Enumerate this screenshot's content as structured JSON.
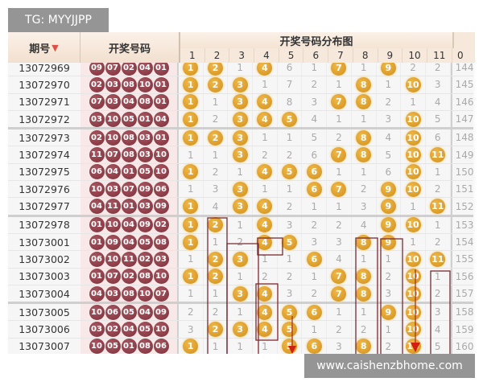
{
  "watermark_top": "TG: MYYJJPP",
  "watermark_bottom": "www.caishenzbhome.com",
  "header": {
    "period_label": "期号",
    "draw_label": "开奖号码",
    "distribution_label": "开奖号码分布图",
    "columns": [
      "1",
      "2",
      "3",
      "4",
      "5",
      "6",
      "7",
      "8",
      "9",
      "10",
      "11"
    ],
    "last_column": "0",
    "sort_icon": "down-arrow-icon"
  },
  "colors": {
    "draw_ball": "#8b3a44",
    "hit_ball": "#e0a030",
    "trend_box": "#7a2a30",
    "arrow": "#d02010"
  },
  "rows": [
    {
      "period": "13072969",
      "draws": [
        "09",
        "07",
        "02",
        "04",
        "01"
      ],
      "cells": [
        "1",
        "2",
        "1",
        "4",
        "6",
        "1",
        "7",
        "1",
        "9",
        "2",
        "2"
      ],
      "last": "144"
    },
    {
      "period": "13072970",
      "draws": [
        "02",
        "03",
        "08",
        "10",
        "01"
      ],
      "cells": [
        "1",
        "2",
        "3",
        "1",
        "7",
        "2",
        "1",
        "8",
        "1",
        "10",
        "3"
      ],
      "last": "145"
    },
    {
      "period": "13072971",
      "draws": [
        "07",
        "03",
        "04",
        "08",
        "01"
      ],
      "cells": [
        "1",
        "1",
        "3",
        "4",
        "8",
        "3",
        "7",
        "8",
        "2",
        "1",
        "4"
      ],
      "last": "146"
    },
    {
      "period": "13072972",
      "draws": [
        "03",
        "10",
        "05",
        "01",
        "04"
      ],
      "cells": [
        "1",
        "2",
        "3",
        "4",
        "5",
        "4",
        "1",
        "1",
        "3",
        "10",
        "5"
      ],
      "last": "147"
    },
    {
      "period": "13072973",
      "draws": [
        "02",
        "10",
        "08",
        "03",
        "01"
      ],
      "cells": [
        "1",
        "2",
        "3",
        "1",
        "1",
        "5",
        "2",
        "8",
        "4",
        "10",
        "6"
      ],
      "last": "148"
    },
    {
      "period": "13072974",
      "draws": [
        "11",
        "07",
        "08",
        "03",
        "10"
      ],
      "cells": [
        "1",
        "1",
        "3",
        "2",
        "2",
        "6",
        "7",
        "8",
        "5",
        "10",
        "11"
      ],
      "last": "149"
    },
    {
      "period": "13072975",
      "draws": [
        "06",
        "04",
        "01",
        "05",
        "10"
      ],
      "cells": [
        "1",
        "2",
        "1",
        "4",
        "5",
        "6",
        "1",
        "1",
        "6",
        "10",
        "1"
      ],
      "last": "150"
    },
    {
      "period": "13072976",
      "draws": [
        "10",
        "03",
        "07",
        "09",
        "06"
      ],
      "cells": [
        "1",
        "3",
        "3",
        "1",
        "1",
        "6",
        "7",
        "2",
        "9",
        "10",
        "2"
      ],
      "last": "151"
    },
    {
      "period": "13072977",
      "draws": [
        "04",
        "11",
        "01",
        "03",
        "09"
      ],
      "cells": [
        "1",
        "4",
        "3",
        "4",
        "2",
        "1",
        "1",
        "3",
        "9",
        "1",
        "11"
      ],
      "last": "152"
    },
    {
      "period": "13072978",
      "draws": [
        "01",
        "10",
        "04",
        "09",
        "02"
      ],
      "cells": [
        "1",
        "2",
        "1",
        "4",
        "3",
        "2",
        "2",
        "4",
        "9",
        "10",
        "1"
      ],
      "last": "153"
    },
    {
      "period": "13073001",
      "draws": [
        "01",
        "09",
        "04",
        "05",
        "08"
      ],
      "cells": [
        "1",
        "1",
        "2",
        "4",
        "5",
        "3",
        "3",
        "8",
        "9",
        "1",
        "2"
      ],
      "last": "154"
    },
    {
      "period": "13073002",
      "draws": [
        "06",
        "10",
        "11",
        "02",
        "03"
      ],
      "cells": [
        "1",
        "2",
        "3",
        "1",
        "1",
        "6",
        "4",
        "1",
        "1",
        "10",
        "11"
      ],
      "last": "155"
    },
    {
      "period": "13073003",
      "draws": [
        "01",
        "07",
        "02",
        "08",
        "10"
      ],
      "cells": [
        "1",
        "2",
        "1",
        "2",
        "2",
        "1",
        "7",
        "8",
        "2",
        "10",
        "1"
      ],
      "last": "156"
    },
    {
      "period": "13073004",
      "draws": [
        "04",
        "03",
        "08",
        "10",
        "07"
      ],
      "cells": [
        "1",
        "1",
        "3",
        "4",
        "3",
        "2",
        "7",
        "8",
        "3",
        "10",
        "2"
      ],
      "last": "157"
    },
    {
      "period": "13073005",
      "draws": [
        "10",
        "06",
        "05",
        "04",
        "09"
      ],
      "cells": [
        "2",
        "2",
        "1",
        "4",
        "5",
        "6",
        "1",
        "1",
        "9",
        "10",
        "3"
      ],
      "last": "158"
    },
    {
      "period": "13073006",
      "draws": [
        "03",
        "02",
        "04",
        "05",
        "10"
      ],
      "cells": [
        "3",
        "2",
        "3",
        "4",
        "5",
        "1",
        "2",
        "2",
        "1",
        "10",
        "4"
      ],
      "last": "159"
    },
    {
      "period": "13073007",
      "draws": [
        "10",
        "05",
        "01",
        "08",
        "06"
      ],
      "cells": [
        "1",
        "1",
        "1",
        "1",
        "5",
        "6",
        "3",
        "8",
        "2",
        "10",
        "5"
      ],
      "last": "160"
    }
  ]
}
